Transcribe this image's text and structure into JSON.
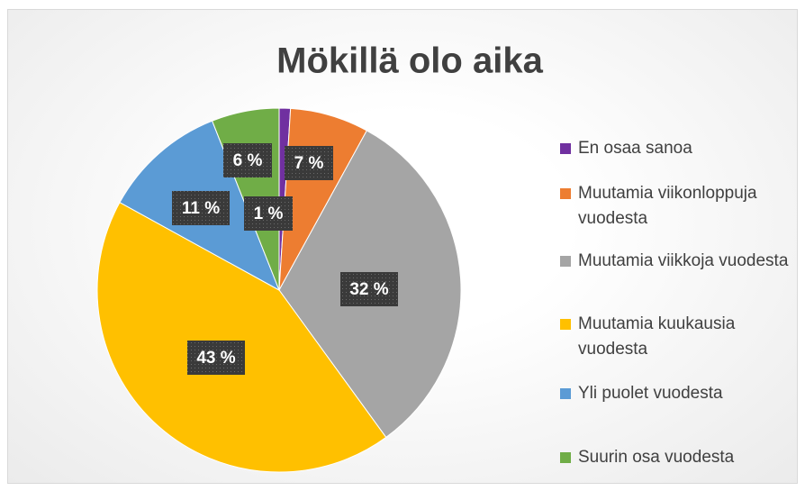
{
  "chart_data": {
    "type": "pie",
    "title": "Mökillä olo aika",
    "categories": [
      "En osaa sanoa",
      "Muutamia viikonloppuja vuodesta",
      "Muutamia viikkoja vuodesta",
      "Muutamia kuukausia vuodesta",
      "Yli puolet vuodesta",
      "Suurin osa vuodesta"
    ],
    "values": [
      1,
      7,
      32,
      43,
      11,
      6
    ],
    "value_labels": [
      "1 %",
      "7 %",
      "32 %",
      "43 %",
      "11 %",
      "6 %"
    ],
    "colors": [
      "#7030a0",
      "#ed7d31",
      "#a5a5a5",
      "#ffc000",
      "#5b9bd5",
      "#70ad47"
    ],
    "legend": "right"
  }
}
